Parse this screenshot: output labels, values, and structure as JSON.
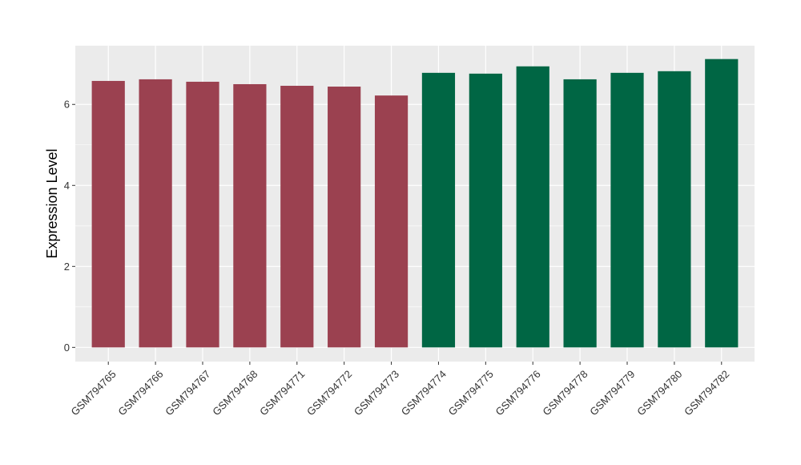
{
  "chart_data": {
    "type": "bar",
    "title": "",
    "xlabel": "",
    "ylabel": "Expression Level",
    "ylim": [
      -0.35,
      7.45
    ],
    "yticks": [
      0,
      2,
      4,
      6
    ],
    "grid": true,
    "legend": "none",
    "categories": [
      "GSM794765",
      "GSM794766",
      "GSM794767",
      "GSM794768",
      "GSM794771",
      "GSM794772",
      "GSM794773",
      "GSM794774",
      "GSM794775",
      "GSM794776",
      "GSM794778",
      "GSM794779",
      "GSM794780",
      "GSM794782"
    ],
    "values": [
      6.58,
      6.62,
      6.56,
      6.5,
      6.46,
      6.44,
      6.22,
      6.78,
      6.76,
      6.94,
      6.62,
      6.78,
      6.82,
      7.12
    ],
    "bar_colors": [
      "#9b4150",
      "#9b4150",
      "#9b4150",
      "#9b4150",
      "#9b4150",
      "#9b4150",
      "#9b4150",
      "#006644",
      "#006644",
      "#006644",
      "#006644",
      "#006644",
      "#006644",
      "#006644"
    ],
    "panel_background": "#ebebeb",
    "grid_color": "#ffffff"
  }
}
